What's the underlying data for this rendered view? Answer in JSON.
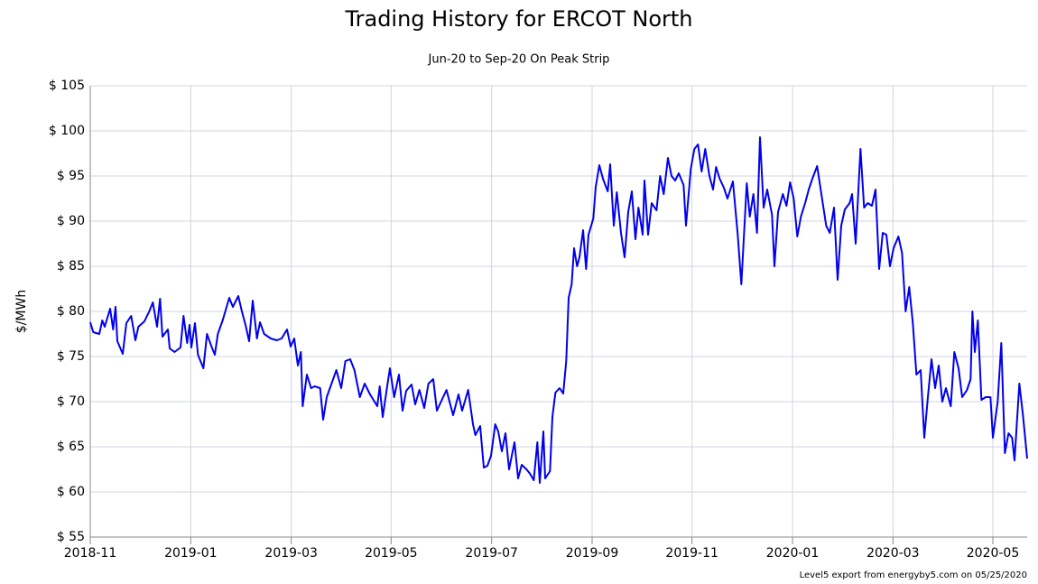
{
  "chart_data": {
    "type": "line",
    "title": "Trading History for ERCOT North",
    "subtitle": "Jun-20 to Sep-20 On Peak Strip",
    "y_label": "$/MWh",
    "footer": "Level5 export from energyby5.com on 05/25/2020",
    "color": "#0000ee",
    "grid": true,
    "xlim": [
      2018.833,
      2020.39
    ],
    "xticks": [
      {
        "value": 2018.833,
        "label": "2018-11"
      },
      {
        "value": 2019.0,
        "label": "2019-01"
      },
      {
        "value": 2019.167,
        "label": "2019-03"
      },
      {
        "value": 2019.333,
        "label": "2019-05"
      },
      {
        "value": 2019.5,
        "label": "2019-07"
      },
      {
        "value": 2019.667,
        "label": "2019-09"
      },
      {
        "value": 2019.833,
        "label": "2019-11"
      },
      {
        "value": 2020.0,
        "label": "2020-01"
      },
      {
        "value": 2020.167,
        "label": "2020-03"
      },
      {
        "value": 2020.333,
        "label": "2020-05"
      }
    ],
    "ylim": [
      55,
      105
    ],
    "yticks": [
      {
        "value": 55,
        "label": "$ 55"
      },
      {
        "value": 60,
        "label": "$ 60"
      },
      {
        "value": 65,
        "label": "$ 65"
      },
      {
        "value": 70,
        "label": "$ 70"
      },
      {
        "value": 75,
        "label": "$ 75"
      },
      {
        "value": 80,
        "label": "$ 80"
      },
      {
        "value": 85,
        "label": "$ 85"
      },
      {
        "value": 90,
        "label": "$ 90"
      },
      {
        "value": 95,
        "label": "$ 95"
      },
      {
        "value": 100,
        "label": "$ 100"
      },
      {
        "value": 105,
        "label": "$ 105"
      }
    ],
    "x": [
      2018.833,
      2018.838,
      2018.848,
      2018.853,
      2018.857,
      2018.866,
      2018.871,
      2018.875,
      2018.878,
      2018.887,
      2018.893,
      2018.901,
      2018.908,
      2018.913,
      2018.923,
      2018.931,
      2018.937,
      2018.944,
      2018.949,
      2018.953,
      2018.962,
      2018.965,
      2018.973,
      2018.983,
      2018.988,
      2018.994,
      2018.998,
      2019.001,
      2019.007,
      2019.012,
      2019.021,
      2019.027,
      2019.034,
      2019.04,
      2019.045,
      2019.053,
      2019.064,
      2019.07,
      2019.079,
      2019.085,
      2019.091,
      2019.097,
      2019.103,
      2019.11,
      2019.115,
      2019.122,
      2019.133,
      2019.143,
      2019.151,
      2019.16,
      2019.166,
      2019.172,
      2019.178,
      2019.183,
      2019.186,
      2019.193,
      2019.2,
      2019.206,
      2019.215,
      2019.22,
      2019.226,
      2019.235,
      2019.242,
      2019.25,
      2019.257,
      2019.265,
      2019.272,
      2019.281,
      2019.289,
      2019.298,
      2019.31,
      2019.314,
      2019.319,
      2019.326,
      2019.331,
      2019.338,
      2019.346,
      2019.352,
      2019.358,
      2019.367,
      2019.373,
      2019.38,
      2019.388,
      2019.395,
      2019.403,
      2019.409,
      2019.418,
      2019.425,
      2019.436,
      2019.445,
      2019.451,
      2019.461,
      2019.469,
      2019.473,
      2019.481,
      2019.487,
      2019.493,
      2019.499,
      2019.506,
      2019.511,
      2019.517,
      2019.523,
      2019.529,
      2019.538,
      2019.544,
      2019.55,
      2019.558,
      2019.564,
      2019.57,
      2019.576,
      2019.58,
      2019.586,
      2019.589,
      2019.597,
      2019.601,
      2019.606,
      2019.613,
      2019.619,
      2019.624,
      2019.628,
      2019.633,
      2019.637,
      2019.642,
      2019.646,
      2019.652,
      2019.657,
      2019.661,
      2019.669,
      2019.673,
      2019.679,
      2019.685,
      2019.693,
      2019.697,
      2019.703,
      2019.708,
      2019.715,
      2019.721,
      2019.727,
      2019.733,
      2019.739,
      2019.744,
      2019.751,
      2019.754,
      2019.76,
      2019.766,
      2019.774,
      2019.78,
      2019.786,
      2019.793,
      2019.799,
      2019.805,
      2019.811,
      2019.819,
      2019.823,
      2019.831,
      2019.837,
      2019.843,
      2019.849,
      2019.855,
      2019.862,
      2019.868,
      2019.873,
      2019.879,
      2019.886,
      2019.892,
      2019.901,
      2019.909,
      2019.915,
      2019.924,
      2019.929,
      2019.935,
      2019.941,
      2019.946,
      2019.952,
      2019.958,
      2019.966,
      2019.97,
      2019.976,
      2019.984,
      2019.99,
      2019.996,
      2020.002,
      2020.008,
      2020.014,
      2020.021,
      2020.027,
      2020.033,
      2020.041,
      2020.048,
      2020.056,
      2020.062,
      2020.069,
      2020.075,
      2020.081,
      2020.087,
      2020.095,
      2020.099,
      2020.105,
      2020.113,
      2020.119,
      2020.125,
      2020.132,
      2020.138,
      2020.144,
      2020.15,
      2020.156,
      2020.162,
      2020.168,
      2020.176,
      2020.182,
      2020.188,
      2020.194,
      2020.2,
      2020.206,
      2020.213,
      2020.219,
      2020.225,
      2020.231,
      2020.237,
      2020.243,
      2020.249,
      2020.255,
      2020.263,
      2020.269,
      2020.276,
      2020.282,
      2020.29,
      2020.296,
      2020.299,
      2020.303,
      2020.308,
      2020.314,
      2020.321,
      2020.329,
      2020.333,
      2020.341,
      2020.347,
      2020.353,
      2020.359,
      2020.365,
      2020.369,
      2020.377,
      2020.383,
      2020.39
    ],
    "values": [
      78.8,
      77.7,
      77.5,
      79.0,
      78.3,
      80.3,
      78.0,
      80.5,
      76.7,
      75.3,
      78.7,
      79.5,
      76.8,
      78.3,
      78.9,
      80.0,
      81.0,
      78.3,
      81.4,
      77.2,
      78.0,
      75.9,
      75.5,
      76.0,
      79.5,
      76.5,
      78.5,
      76.0,
      78.7,
      75.2,
      73.7,
      77.5,
      76.2,
      75.2,
      77.5,
      79.0,
      81.5,
      80.5,
      81.7,
      80.0,
      78.5,
      76.7,
      81.2,
      77.0,
      78.8,
      77.5,
      77.0,
      76.8,
      77.0,
      78.0,
      76.1,
      77.0,
      74.0,
      75.5,
      69.5,
      73.0,
      71.5,
      71.7,
      71.5,
      68.0,
      70.5,
      72.2,
      73.5,
      71.5,
      74.5,
      74.7,
      73.5,
      70.5,
      72.0,
      70.8,
      69.5,
      71.7,
      68.3,
      71.5,
      73.7,
      70.5,
      73.0,
      69.0,
      71.2,
      71.9,
      69.7,
      71.3,
      69.3,
      72.0,
      72.5,
      69.0,
      70.3,
      71.3,
      68.5,
      70.8,
      69.0,
      71.3,
      67.5,
      66.3,
      67.3,
      62.7,
      62.9,
      64.0,
      67.5,
      66.7,
      64.5,
      66.5,
      62.5,
      65.5,
      61.5,
      63.0,
      62.5,
      62.0,
      61.3,
      65.5,
      61.0,
      66.7,
      61.5,
      62.3,
      68.3,
      71.0,
      71.5,
      70.9,
      74.5,
      81.5,
      83.0,
      87.0,
      85.0,
      86.0,
      89.0,
      84.7,
      88.5,
      90.3,
      93.8,
      96.2,
      94.7,
      93.3,
      96.3,
      89.5,
      93.2,
      88.7,
      86.0,
      91.0,
      93.3,
      88.0,
      91.5,
      88.5,
      94.5,
      88.5,
      92.0,
      91.2,
      95.0,
      93.0,
      97.0,
      95.0,
      94.5,
      95.3,
      94.0,
      89.5,
      95.8,
      98.0,
      98.5,
      95.5,
      98.0,
      95.0,
      93.5,
      96.0,
      94.7,
      93.7,
      92.5,
      94.4,
      88.5,
      83.0,
      94.2,
      90.5,
      93.0,
      88.7,
      99.3,
      91.5,
      93.5,
      90.7,
      85.0,
      91.0,
      93.0,
      91.7,
      94.3,
      92.5,
      88.3,
      90.5,
      92.0,
      93.5,
      94.7,
      96.1,
      93.0,
      89.5,
      88.7,
      91.5,
      83.5,
      89.5,
      91.3,
      92.0,
      93.0,
      87.5,
      98.0,
      91.5,
      92.0,
      91.7,
      93.5,
      84.7,
      88.7,
      88.5,
      85.0,
      87.0,
      88.3,
      86.5,
      80.0,
      82.7,
      78.7,
      73.0,
      73.5,
      66.0,
      70.5,
      74.7,
      71.5,
      74.0,
      70.0,
      71.5,
      69.5,
      75.5,
      73.7,
      70.5,
      71.3,
      72.5,
      80.0,
      75.5,
      79.0,
      70.2,
      70.5,
      70.5,
      66.0,
      70.0,
      76.5,
      64.3,
      66.5,
      66.0,
      63.5,
      72.0,
      68.5,
      63.7
    ]
  }
}
